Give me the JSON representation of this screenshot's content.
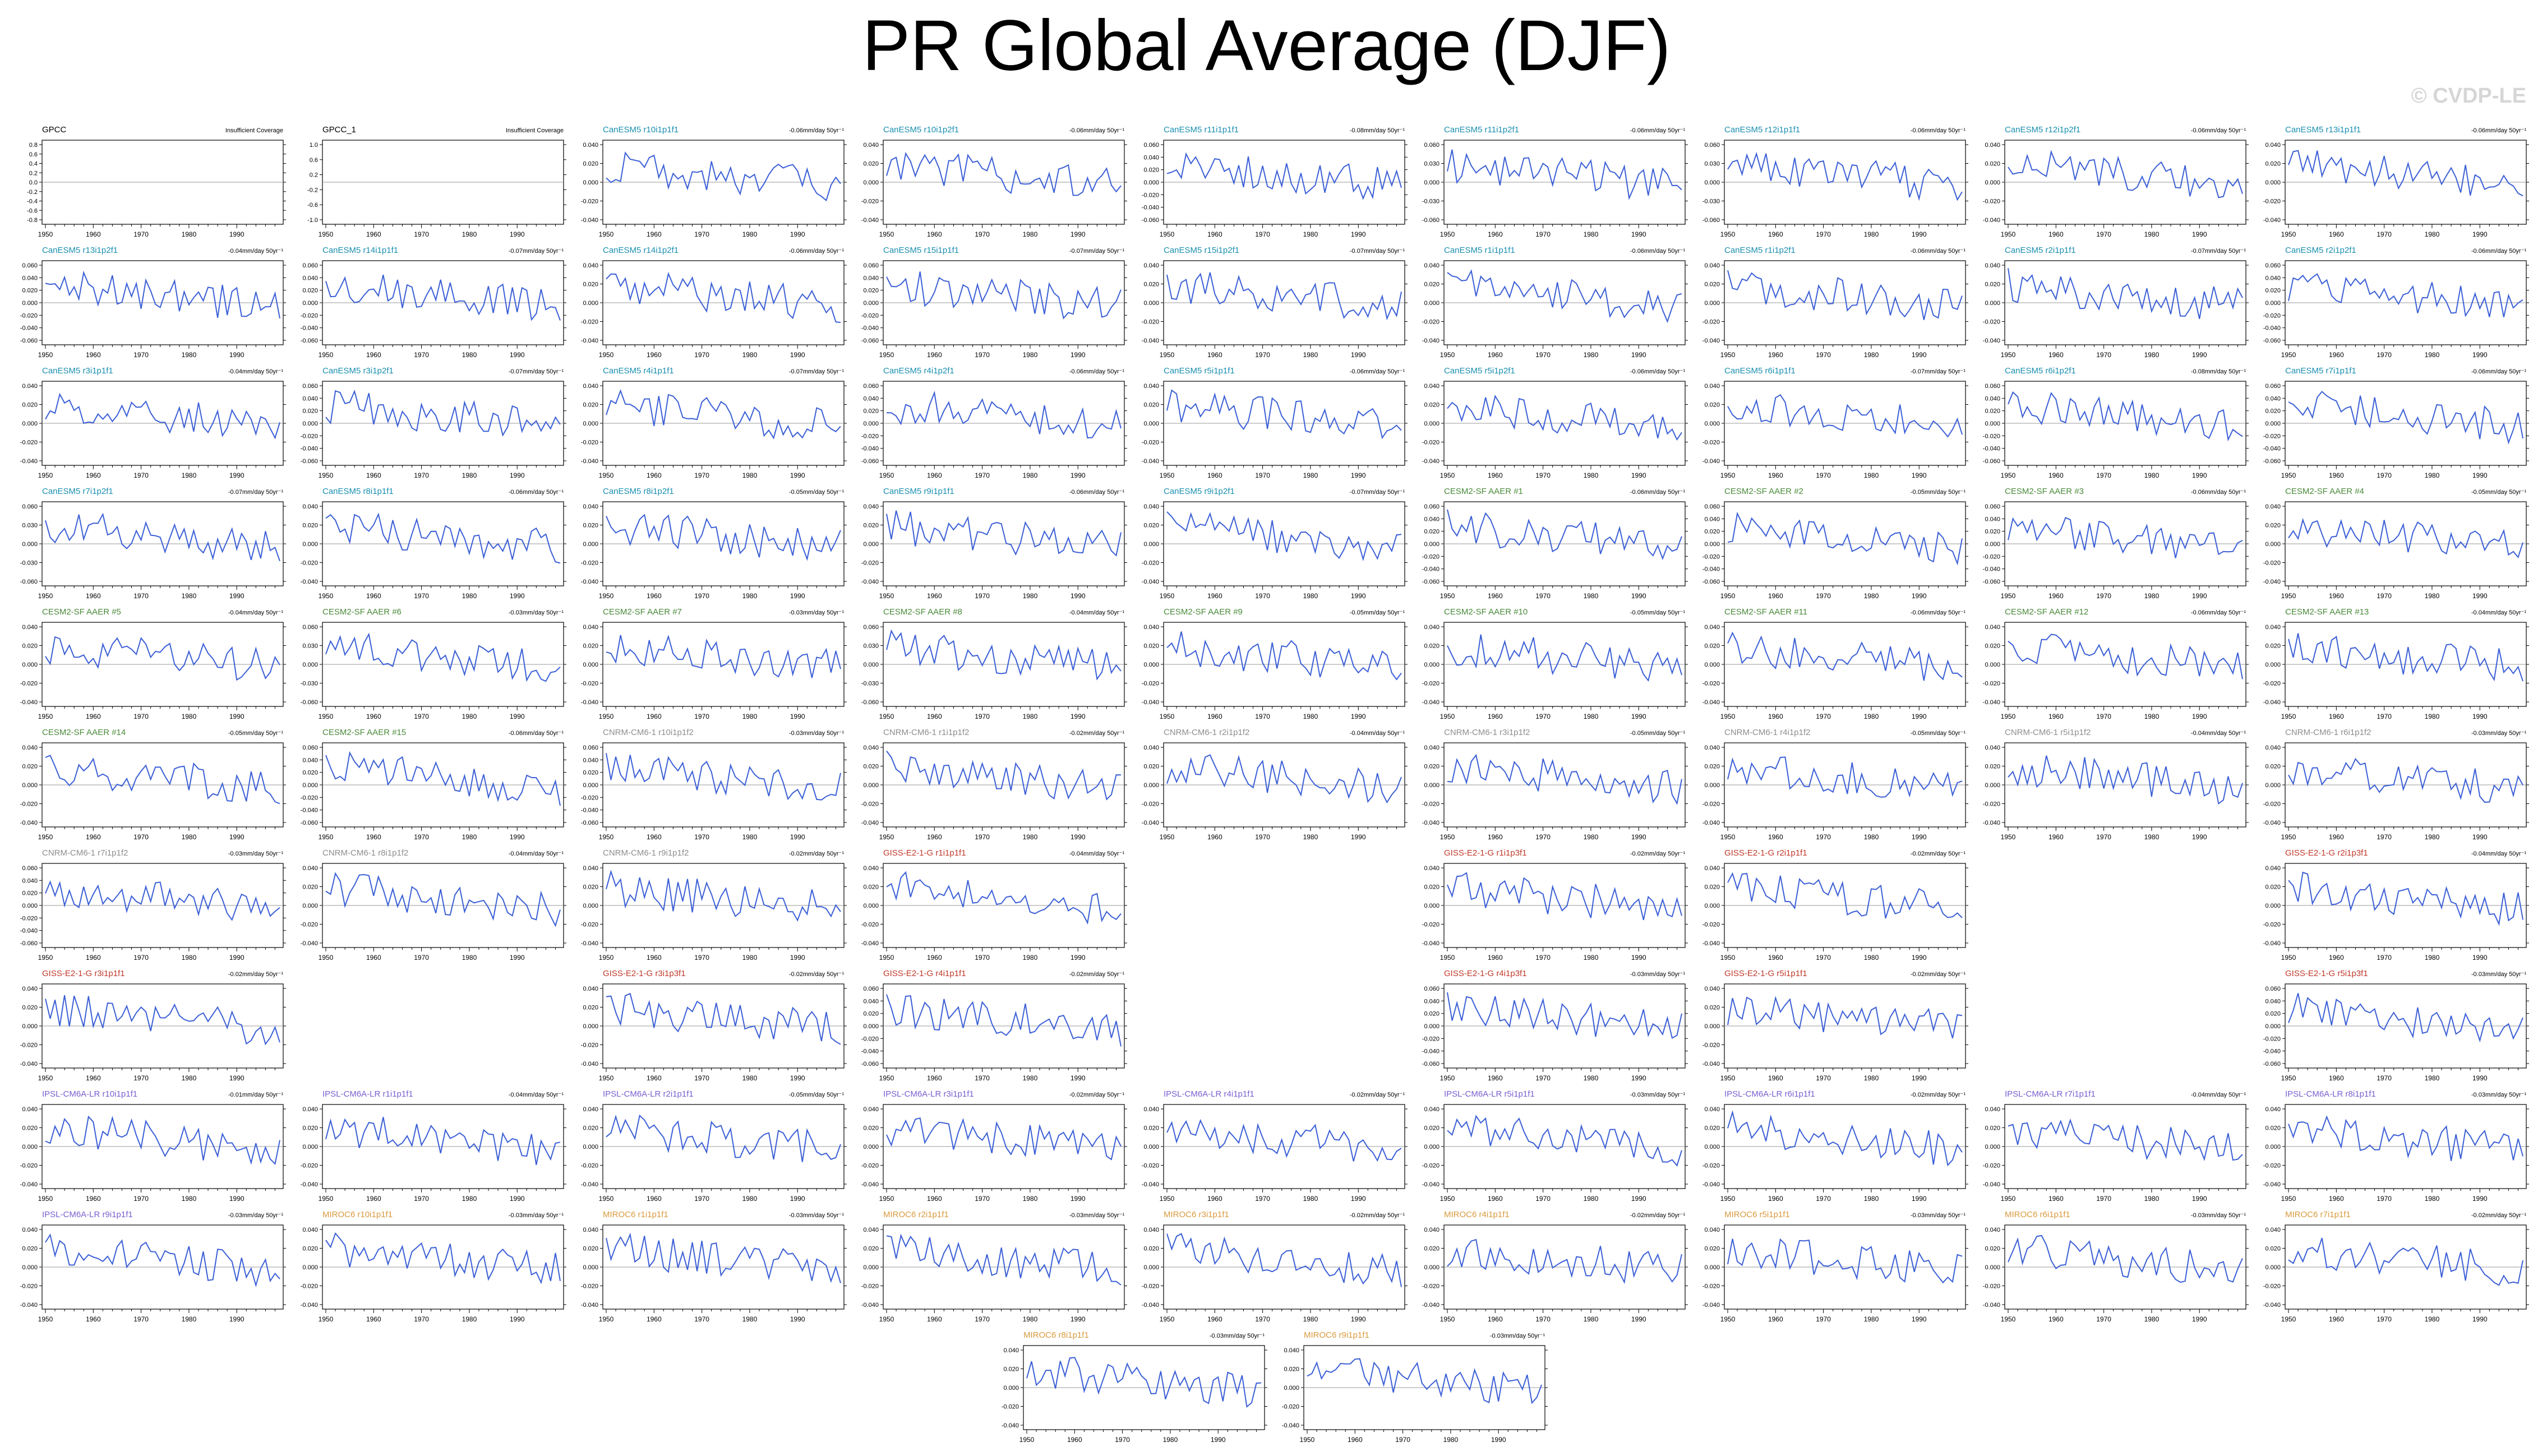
{
  "title": "PR Global Average (DJF)",
  "watermark": "© CVDP-LE",
  "colors": {
    "line": "#3b5fd6",
    "zero_line": "#9a9a9a",
    "obs": "#000000",
    "CanESM5": "#1a8fb0",
    "CESM2-SF AAER": "#4a8a3a",
    "CNRM-CM6-1": "#8e8e8e",
    "GISS-E2-1-G": "#c0392b",
    "IPSL-CM6A-LR": "#7a5fd0",
    "MIROC6": "#d99a3d"
  },
  "chart_data": {
    "type": "line",
    "x_range": [
      1950,
      1999
    ],
    "x_ticks": [
      "1950",
      "1960",
      "1970",
      "1980",
      "1990"
    ],
    "y_tick_sets": {
      "obs": [
        "0.8",
        "0.6",
        "0.4",
        "0.2",
        "0.0",
        "-0.2",
        "-0.4",
        "-0.6",
        "-0.8"
      ],
      "obs2": [
        "1.0",
        "0.6",
        "0.2",
        "-0.2",
        "-0.6",
        "-1.0"
      ],
      "a": [
        "0.040",
        "0.020",
        "0.000",
        "-0.020",
        "-0.040"
      ],
      "b": [
        "0.060",
        "0.040",
        "0.020",
        "0.000",
        "-0.020",
        "-0.040",
        "-0.060"
      ],
      "c": [
        "0.060",
        "0.030",
        "0.000",
        "-0.030",
        "-0.060"
      ]
    },
    "panels": [
      {
        "row": 0,
        "col": 0,
        "name": "GPCC",
        "group": "obs",
        "trend": "Insufficient Coverage",
        "yset": "obs",
        "empty": true
      },
      {
        "row": 0,
        "col": 1,
        "name": "GPCC_1",
        "group": "obs",
        "trend": "Insufficient Coverage",
        "yset": "obs2",
        "empty": true
      },
      {
        "row": 0,
        "col": 2,
        "name": "CanESM5 r10i1p1f1",
        "group": "CanESM5",
        "trend": "-0.06mm/day 50yr⁻¹",
        "yset": "a"
      },
      {
        "row": 0,
        "col": 3,
        "name": "CanESM5 r10i1p2f1",
        "group": "CanESM5",
        "trend": "-0.06mm/day 50yr⁻¹",
        "yset": "a"
      },
      {
        "row": 0,
        "col": 4,
        "name": "CanESM5 r11i1p1f1",
        "group": "CanESM5",
        "trend": "-0.08mm/day 50yr⁻¹",
        "yset": "b"
      },
      {
        "row": 0,
        "col": 5,
        "name": "CanESM5 r11i1p2f1",
        "group": "CanESM5",
        "trend": "-0.06mm/day 50yr⁻¹",
        "yset": "c"
      },
      {
        "row": 0,
        "col": 6,
        "name": "CanESM5 r12i1p1f1",
        "group": "CanESM5",
        "trend": "-0.06mm/day 50yr⁻¹",
        "yset": "c"
      },
      {
        "row": 0,
        "col": 7,
        "name": "CanESM5 r12i1p2f1",
        "group": "CanESM5",
        "trend": "-0.06mm/day 50yr⁻¹",
        "yset": "a"
      },
      {
        "row": 0,
        "col": 8,
        "name": "CanESM5 r13i1p1f1",
        "group": "CanESM5",
        "trend": "-0.06mm/day 50yr⁻¹",
        "yset": "a"
      },
      {
        "row": 1,
        "col": 0,
        "name": "CanESM5 r13i1p2f1",
        "group": "CanESM5",
        "trend": "-0.04mm/day 50yr⁻¹",
        "yset": "b"
      },
      {
        "row": 1,
        "col": 1,
        "name": "CanESM5 r14i1p1f1",
        "group": "CanESM5",
        "trend": "-0.07mm/day 50yr⁻¹",
        "yset": "b"
      },
      {
        "row": 1,
        "col": 2,
        "name": "CanESM5 r14i1p2f1",
        "group": "CanESM5",
        "trend": "-0.06mm/day 50yr⁻¹",
        "yset": "a"
      },
      {
        "row": 1,
        "col": 3,
        "name": "CanESM5 r15i1p1f1",
        "group": "CanESM5",
        "trend": "-0.07mm/day 50yr⁻¹",
        "yset": "b"
      },
      {
        "row": 1,
        "col": 4,
        "name": "CanESM5 r15i1p2f1",
        "group": "CanESM5",
        "trend": "-0.07mm/day 50yr⁻¹",
        "yset": "a"
      },
      {
        "row": 1,
        "col": 5,
        "name": "CanESM5 r1i1p1f1",
        "group": "CanESM5",
        "trend": "-0.06mm/day 50yr⁻¹",
        "yset": "a"
      },
      {
        "row": 1,
        "col": 6,
        "name": "CanESM5 r1i1p2f1",
        "group": "CanESM5",
        "trend": "-0.06mm/day 50yr⁻¹",
        "yset": "a"
      },
      {
        "row": 1,
        "col": 7,
        "name": "CanESM5 r2i1p1f1",
        "group": "CanESM5",
        "trend": "-0.07mm/day 50yr⁻¹",
        "yset": "a"
      },
      {
        "row": 1,
        "col": 8,
        "name": "CanESM5 r2i1p2f1",
        "group": "CanESM5",
        "trend": "-0.06mm/day 50yr⁻¹",
        "yset": "b"
      },
      {
        "row": 2,
        "col": 0,
        "name": "CanESM5 r3i1p1f1",
        "group": "CanESM5",
        "trend": "-0.04mm/day 50yr⁻¹",
        "yset": "a"
      },
      {
        "row": 2,
        "col": 1,
        "name": "CanESM5 r3i1p2f1",
        "group": "CanESM5",
        "trend": "-0.07mm/day 50yr⁻¹",
        "yset": "b"
      },
      {
        "row": 2,
        "col": 2,
        "name": "CanESM5 r4i1p1f1",
        "group": "CanESM5",
        "trend": "-0.07mm/day 50yr⁻¹",
        "yset": "a"
      },
      {
        "row": 2,
        "col": 3,
        "name": "CanESM5 r4i1p2f1",
        "group": "CanESM5",
        "trend": "-0.06mm/day 50yr⁻¹",
        "yset": "b"
      },
      {
        "row": 2,
        "col": 4,
        "name": "CanESM5 r5i1p1f1",
        "group": "CanESM5",
        "trend": "-0.06mm/day 50yr⁻¹",
        "yset": "a"
      },
      {
        "row": 2,
        "col": 5,
        "name": "CanESM5 r5i1p2f1",
        "group": "CanESM5",
        "trend": "-0.06mm/day 50yr⁻¹",
        "yset": "a"
      },
      {
        "row": 2,
        "col": 6,
        "name": "CanESM5 r6i1p1f1",
        "group": "CanESM5",
        "trend": "-0.07mm/day 50yr⁻¹",
        "yset": "a"
      },
      {
        "row": 2,
        "col": 7,
        "name": "CanESM5 r6i1p2f1",
        "group": "CanESM5",
        "trend": "-0.08mm/day 50yr⁻¹",
        "yset": "b"
      },
      {
        "row": 2,
        "col": 8,
        "name": "CanESM5 r7i1p1f1",
        "group": "CanESM5",
        "trend": "-0.06mm/day 50yr⁻¹",
        "yset": "b"
      },
      {
        "row": 3,
        "col": 0,
        "name": "CanESM5 r7i1p2f1",
        "group": "CanESM5",
        "trend": "-0.07mm/day 50yr⁻¹",
        "yset": "c"
      },
      {
        "row": 3,
        "col": 1,
        "name": "CanESM5 r8i1p1f1",
        "group": "CanESM5",
        "trend": "-0.06mm/day 50yr⁻¹",
        "yset": "a"
      },
      {
        "row": 3,
        "col": 2,
        "name": "CanESM5 r8i1p2f1",
        "group": "CanESM5",
        "trend": "-0.05mm/day 50yr⁻¹",
        "yset": "a"
      },
      {
        "row": 3,
        "col": 3,
        "name": "CanESM5 r9i1p1f1",
        "group": "CanESM5",
        "trend": "-0.06mm/day 50yr⁻¹",
        "yset": "a"
      },
      {
        "row": 3,
        "col": 4,
        "name": "CanESM5 r9i1p2f1",
        "group": "CanESM5",
        "trend": "-0.07mm/day 50yr⁻¹",
        "yset": "a"
      },
      {
        "row": 3,
        "col": 5,
        "name": "CESM2-SF AAER #1",
        "group": "CESM2-SF AAER",
        "trend": "-0.06mm/day 50yr⁻¹",
        "yset": "b"
      },
      {
        "row": 3,
        "col": 6,
        "name": "CESM2-SF AAER #2",
        "group": "CESM2-SF AAER",
        "trend": "-0.05mm/day 50yr⁻¹",
        "yset": "b"
      },
      {
        "row": 3,
        "col": 7,
        "name": "CESM2-SF AAER #3",
        "group": "CESM2-SF AAER",
        "trend": "-0.06mm/day 50yr⁻¹",
        "yset": "b"
      },
      {
        "row": 3,
        "col": 8,
        "name": "CESM2-SF AAER #4",
        "group": "CESM2-SF AAER",
        "trend": "-0.05mm/day 50yr⁻¹",
        "yset": "a"
      },
      {
        "row": 4,
        "col": 0,
        "name": "CESM2-SF AAER #5",
        "group": "CESM2-SF AAER",
        "trend": "-0.04mm/day 50yr⁻¹",
        "yset": "a"
      },
      {
        "row": 4,
        "col": 1,
        "name": "CESM2-SF AAER #6",
        "group": "CESM2-SF AAER",
        "trend": "-0.03mm/day 50yr⁻¹",
        "yset": "c"
      },
      {
        "row": 4,
        "col": 2,
        "name": "CESM2-SF AAER #7",
        "group": "CESM2-SF AAER",
        "trend": "-0.03mm/day 50yr⁻¹",
        "yset": "a"
      },
      {
        "row": 4,
        "col": 3,
        "name": "CESM2-SF AAER #8",
        "group": "CESM2-SF AAER",
        "trend": "-0.04mm/day 50yr⁻¹",
        "yset": "c"
      },
      {
        "row": 4,
        "col": 4,
        "name": "CESM2-SF AAER #9",
        "group": "CESM2-SF AAER",
        "trend": "-0.05mm/day 50yr⁻¹",
        "yset": "a"
      },
      {
        "row": 4,
        "col": 5,
        "name": "CESM2-SF AAER #10",
        "group": "CESM2-SF AAER",
        "trend": "-0.05mm/day 50yr⁻¹",
        "yset": "a"
      },
      {
        "row": 4,
        "col": 6,
        "name": "CESM2-SF AAER #11",
        "group": "CESM2-SF AAER",
        "trend": "-0.06mm/day 50yr⁻¹",
        "yset": "a"
      },
      {
        "row": 4,
        "col": 7,
        "name": "CESM2-SF AAER #12",
        "group": "CESM2-SF AAER",
        "trend": "-0.06mm/day 50yr⁻¹",
        "yset": "a"
      },
      {
        "row": 4,
        "col": 8,
        "name": "CESM2-SF AAER #13",
        "group": "CESM2-SF AAER",
        "trend": "-0.04mm/day 50yr⁻¹",
        "yset": "a"
      },
      {
        "row": 5,
        "col": 0,
        "name": "CESM2-SF AAER #14",
        "group": "CESM2-SF AAER",
        "trend": "-0.05mm/day 50yr⁻¹",
        "yset": "a"
      },
      {
        "row": 5,
        "col": 1,
        "name": "CESM2-SF AAER #15",
        "group": "CESM2-SF AAER",
        "trend": "-0.06mm/day 50yr⁻¹",
        "yset": "b"
      },
      {
        "row": 5,
        "col": 2,
        "name": "CNRM-CM6-1 r10i1p1f2",
        "group": "CNRM-CM6-1",
        "trend": "-0.03mm/day 50yr⁻¹",
        "yset": "b"
      },
      {
        "row": 5,
        "col": 3,
        "name": "CNRM-CM6-1 r1i1p1f2",
        "group": "CNRM-CM6-1",
        "trend": "-0.02mm/day 50yr⁻¹",
        "yset": "a"
      },
      {
        "row": 5,
        "col": 4,
        "name": "CNRM-CM6-1 r2i1p1f2",
        "group": "CNRM-CM6-1",
        "trend": "-0.04mm/day 50yr⁻¹",
        "yset": "a"
      },
      {
        "row": 5,
        "col": 5,
        "name": "CNRM-CM6-1 r3i1p1f2",
        "group": "CNRM-CM6-1",
        "trend": "-0.05mm/day 50yr⁻¹",
        "yset": "a"
      },
      {
        "row": 5,
        "col": 6,
        "name": "CNRM-CM6-1 r4i1p1f2",
        "group": "CNRM-CM6-1",
        "trend": "-0.05mm/day 50yr⁻¹",
        "yset": "a"
      },
      {
        "row": 5,
        "col": 7,
        "name": "CNRM-CM6-1 r5i1p1f2",
        "group": "CNRM-CM6-1",
        "trend": "-0.04mm/day 50yr⁻¹",
        "yset": "a"
      },
      {
        "row": 5,
        "col": 8,
        "name": "CNRM-CM6-1 r6i1p1f2",
        "group": "CNRM-CM6-1",
        "trend": "-0.03mm/day 50yr⁻¹",
        "yset": "a"
      },
      {
        "row": 6,
        "col": 0,
        "name": "CNRM-CM6-1 r7i1p1f2",
        "group": "CNRM-CM6-1",
        "trend": "-0.03mm/day 50yr⁻¹",
        "yset": "b"
      },
      {
        "row": 6,
        "col": 1,
        "name": "CNRM-CM6-1 r8i1p1f2",
        "group": "CNRM-CM6-1",
        "trend": "-0.04mm/day 50yr⁻¹",
        "yset": "a"
      },
      {
        "row": 6,
        "col": 2,
        "name": "CNRM-CM6-1 r9i1p1f2",
        "group": "CNRM-CM6-1",
        "trend": "-0.02mm/day 50yr⁻¹",
        "yset": "a"
      },
      {
        "row": 6,
        "col": 3,
        "name": "GISS-E2-1-G r1i1p1f1",
        "group": "GISS-E2-1-G",
        "trend": "-0.04mm/day 50yr⁻¹",
        "yset": "a"
      },
      {
        "row": 6,
        "col": 5,
        "name": "GISS-E2-1-G r1i1p3f1",
        "group": "GISS-E2-1-G",
        "trend": "-0.02mm/day 50yr⁻¹",
        "yset": "a"
      },
      {
        "row": 6,
        "col": 6,
        "name": "GISS-E2-1-G r2i1p1f1",
        "group": "GISS-E2-1-G",
        "trend": "-0.02mm/day 50yr⁻¹",
        "yset": "a"
      },
      {
        "row": 6,
        "col": 8,
        "name": "GISS-E2-1-G r2i1p3f1",
        "group": "GISS-E2-1-G",
        "trend": "-0.04mm/day 50yr⁻¹",
        "yset": "a"
      },
      {
        "row": 7,
        "col": 0,
        "name": "GISS-E2-1-G r3i1p1f1",
        "group": "GISS-E2-1-G",
        "trend": "-0.02mm/day 50yr⁻¹",
        "yset": "a"
      },
      {
        "row": 7,
        "col": 2,
        "name": "GISS-E2-1-G r3i1p3f1",
        "group": "GISS-E2-1-G",
        "trend": "-0.02mm/day 50yr⁻¹",
        "yset": "a"
      },
      {
        "row": 7,
        "col": 3,
        "name": "GISS-E2-1-G r4i1p1f1",
        "group": "GISS-E2-1-G",
        "trend": "-0.02mm/day 50yr⁻¹",
        "yset": "b"
      },
      {
        "row": 7,
        "col": 5,
        "name": "GISS-E2-1-G r4i1p3f1",
        "group": "GISS-E2-1-G",
        "trend": "-0.03mm/day 50yr⁻¹",
        "yset": "b"
      },
      {
        "row": 7,
        "col": 6,
        "name": "GISS-E2-1-G r5i1p1f1",
        "group": "GISS-E2-1-G",
        "trend": "-0.02mm/day 50yr⁻¹",
        "yset": "a"
      },
      {
        "row": 7,
        "col": 8,
        "name": "GISS-E2-1-G r5i1p3f1",
        "group": "GISS-E2-1-G",
        "trend": "-0.03mm/day 50yr⁻¹",
        "yset": "b"
      },
      {
        "row": 8,
        "col": 0,
        "name": "IPSL-CM6A-LR r10i1p1f1",
        "group": "IPSL-CM6A-LR",
        "trend": "-0.01mm/day 50yr⁻¹",
        "yset": "a"
      },
      {
        "row": 8,
        "col": 1,
        "name": "IPSL-CM6A-LR r1i1p1f1",
        "group": "IPSL-CM6A-LR",
        "trend": "-0.04mm/day 50yr⁻¹",
        "yset": "a"
      },
      {
        "row": 8,
        "col": 2,
        "name": "IPSL-CM6A-LR r2i1p1f1",
        "group": "IPSL-CM6A-LR",
        "trend": "-0.05mm/day 50yr⁻¹",
        "yset": "a"
      },
      {
        "row": 8,
        "col": 3,
        "name": "IPSL-CM6A-LR r3i1p1f1",
        "group": "IPSL-CM6A-LR",
        "trend": "-0.02mm/day 50yr⁻¹",
        "yset": "a"
      },
      {
        "row": 8,
        "col": 4,
        "name": "IPSL-CM6A-LR r4i1p1f1",
        "group": "IPSL-CM6A-LR",
        "trend": "-0.02mm/day 50yr⁻¹",
        "yset": "a"
      },
      {
        "row": 8,
        "col": 5,
        "name": "IPSL-CM6A-LR r5i1p1f1",
        "group": "IPSL-CM6A-LR",
        "trend": "-0.03mm/day 50yr⁻¹",
        "yset": "a"
      },
      {
        "row": 8,
        "col": 6,
        "name": "IPSL-CM6A-LR r6i1p1f1",
        "group": "IPSL-CM6A-LR",
        "trend": "-0.02mm/day 50yr⁻¹",
        "yset": "a"
      },
      {
        "row": 8,
        "col": 7,
        "name": "IPSL-CM6A-LR r7i1p1f1",
        "group": "IPSL-CM6A-LR",
        "trend": "-0.04mm/day 50yr⁻¹",
        "yset": "a"
      },
      {
        "row": 8,
        "col": 8,
        "name": "IPSL-CM6A-LR r8i1p1f1",
        "group": "IPSL-CM6A-LR",
        "trend": "-0.03mm/day 50yr⁻¹",
        "yset": "a"
      },
      {
        "row": 9,
        "col": 0,
        "name": "IPSL-CM6A-LR r9i1p1f1",
        "group": "IPSL-CM6A-LR",
        "trend": "-0.03mm/day 50yr⁻¹",
        "yset": "a"
      },
      {
        "row": 9,
        "col": 1,
        "name": "MIROC6 r10i1p1f1",
        "group": "MIROC6",
        "trend": "-0.03mm/day 50yr⁻¹",
        "yset": "a"
      },
      {
        "row": 9,
        "col": 2,
        "name": "MIROC6 r1i1p1f1",
        "group": "MIROC6",
        "trend": "-0.03mm/day 50yr⁻¹",
        "yset": "a"
      },
      {
        "row": 9,
        "col": 3,
        "name": "MIROC6 r2i1p1f1",
        "group": "MIROC6",
        "trend": "-0.03mm/day 50yr⁻¹",
        "yset": "a"
      },
      {
        "row": 9,
        "col": 4,
        "name": "MIROC6 r3i1p1f1",
        "group": "MIROC6",
        "trend": "-0.02mm/day 50yr⁻¹",
        "yset": "a"
      },
      {
        "row": 9,
        "col": 5,
        "name": "MIROC6 r4i1p1f1",
        "group": "MIROC6",
        "trend": "-0.02mm/day 50yr⁻¹",
        "yset": "a"
      },
      {
        "row": 9,
        "col": 6,
        "name": "MIROC6 r5i1p1f1",
        "group": "MIROC6",
        "trend": "-0.03mm/day 50yr⁻¹",
        "yset": "a"
      },
      {
        "row": 9,
        "col": 7,
        "name": "MIROC6 r6i1p1f1",
        "group": "MIROC6",
        "trend": "-0.03mm/day 50yr⁻¹",
        "yset": "a"
      },
      {
        "row": 9,
        "col": 8,
        "name": "MIROC6 r7i1p1f1",
        "group": "MIROC6",
        "trend": "-0.02mm/day 50yr⁻¹",
        "yset": "a"
      },
      {
        "row": 10,
        "col": 3.5,
        "name": "MIROC6 r8i1p1f1",
        "group": "MIROC6",
        "trend": "-0.03mm/day 50yr⁻¹",
        "yset": "a"
      },
      {
        "row": 10,
        "col": 4.5,
        "name": "MIROC6 r9i1p1f1",
        "group": "MIROC6",
        "trend": "-0.03mm/day 50yr⁻¹",
        "yset": "a"
      }
    ]
  }
}
